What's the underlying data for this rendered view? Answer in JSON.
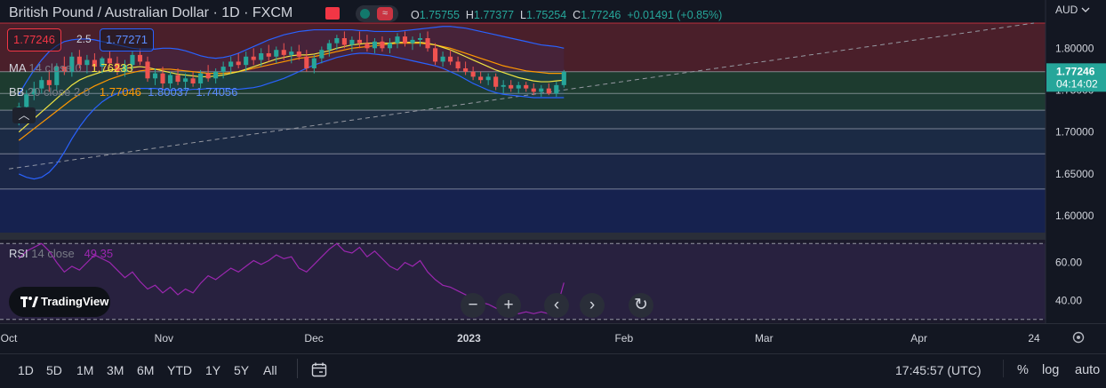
{
  "header": {
    "symbol_title": "British Pound / Australian Dollar · 1D · FXCM",
    "ohlc": {
      "o_label": "O",
      "o_value": "1.75755",
      "h_label": "H",
      "h_value": "1.77377",
      "l_label": "L",
      "l_value": "1.75254",
      "c_label": "C",
      "c_value": "1.77246",
      "change": "+0.01491 (+0.85%)"
    }
  },
  "trade": {
    "sell_price": "1.77246",
    "spread": "2.5",
    "buy_price": "1.77271"
  },
  "indicators": {
    "ma": {
      "name": "MA",
      "params": "14 close 0",
      "value": "1.76233"
    },
    "bb": {
      "name": "BB",
      "params": "20 close 2 0",
      "basis": "1.77046",
      "upper": "1.80037",
      "lower": "1.74056"
    },
    "rsi": {
      "name": "RSI",
      "params": "14 close",
      "value": "49.35"
    }
  },
  "price_axis": {
    "currency": "AUD",
    "labels": [
      "1.80000",
      "1.75000",
      "1.70000",
      "1.65000",
      "1.60000"
    ],
    "current_price": "1.77246",
    "countdown": "04:14:02"
  },
  "rsi_axis": {
    "labels": [
      "60.00",
      "40.00"
    ]
  },
  "time_axis": {
    "labels": [
      "Oct",
      "Nov",
      "Dec",
      "2023",
      "Feb",
      "Mar",
      "Apr",
      "24"
    ]
  },
  "bottom_bar": {
    "ranges": [
      "1D",
      "5D",
      "1M",
      "3M",
      "6M",
      "YTD",
      "1Y",
      "5Y",
      "All"
    ],
    "clock": "17:45:57 (UTC)",
    "percent": "%",
    "log": "log",
    "auto": "auto"
  },
  "branding": {
    "logo_text": "TradingView"
  },
  "colors": {
    "up": "#26a69a",
    "down": "#ef5350",
    "ma": "#f0e442",
    "bb_basis": "#ff9800",
    "bb_band": "#2962ff",
    "rsi": "#9c27b0",
    "background": "#131722"
  },
  "chart_data": {
    "type": "candlestick",
    "timeframe": "1D",
    "x_range": [
      "2022-10-01",
      "2023-04-24"
    ],
    "y_range": [
      1.58,
      1.83
    ],
    "zones": [
      {
        "from": 1.772,
        "to": 1.83,
        "color": "#4a1f2a"
      },
      {
        "from": 1.746,
        "to": 1.772,
        "color": "#1d3b2f"
      },
      {
        "from": 1.726,
        "to": 1.746,
        "color": "#1d3b33"
      },
      {
        "from": 1.704,
        "to": 1.726,
        "color": "#1e2e42"
      },
      {
        "from": 1.674,
        "to": 1.704,
        "color": "#1b2a44"
      },
      {
        "from": 1.632,
        "to": 1.674,
        "color": "#1a2646"
      },
      {
        "from": 1.58,
        "to": 1.632,
        "color": "#16224f"
      }
    ],
    "trend_line": {
      "from": [
        "2022-10-01",
        1.656
      ],
      "to": [
        "2023-04-24",
        1.83
      ]
    },
    "candles": [
      {
        "o": 1.712,
        "h": 1.735,
        "l": 1.708,
        "c": 1.73
      },
      {
        "o": 1.73,
        "h": 1.75,
        "l": 1.722,
        "c": 1.745
      },
      {
        "o": 1.745,
        "h": 1.76,
        "l": 1.738,
        "c": 1.752
      },
      {
        "o": 1.752,
        "h": 1.766,
        "l": 1.746,
        "c": 1.762
      },
      {
        "o": 1.762,
        "h": 1.774,
        "l": 1.748,
        "c": 1.756
      },
      {
        "o": 1.756,
        "h": 1.782,
        "l": 1.75,
        "c": 1.778
      },
      {
        "o": 1.778,
        "h": 1.79,
        "l": 1.768,
        "c": 1.772
      },
      {
        "o": 1.772,
        "h": 1.795,
        "l": 1.766,
        "c": 1.79
      },
      {
        "o": 1.79,
        "h": 1.798,
        "l": 1.776,
        "c": 1.78
      },
      {
        "o": 1.78,
        "h": 1.792,
        "l": 1.77,
        "c": 1.786
      },
      {
        "o": 1.786,
        "h": 1.794,
        "l": 1.774,
        "c": 1.778
      },
      {
        "o": 1.778,
        "h": 1.79,
        "l": 1.77,
        "c": 1.788
      },
      {
        "o": 1.788,
        "h": 1.796,
        "l": 1.778,
        "c": 1.782
      },
      {
        "o": 1.782,
        "h": 1.79,
        "l": 1.768,
        "c": 1.772
      },
      {
        "o": 1.772,
        "h": 1.786,
        "l": 1.766,
        "c": 1.78
      },
      {
        "o": 1.78,
        "h": 1.796,
        "l": 1.774,
        "c": 1.792
      },
      {
        "o": 1.792,
        "h": 1.8,
        "l": 1.78,
        "c": 1.784
      },
      {
        "o": 1.784,
        "h": 1.79,
        "l": 1.76,
        "c": 1.764
      },
      {
        "o": 1.764,
        "h": 1.776,
        "l": 1.756,
        "c": 1.77
      },
      {
        "o": 1.77,
        "h": 1.778,
        "l": 1.752,
        "c": 1.758
      },
      {
        "o": 1.758,
        "h": 1.772,
        "l": 1.752,
        "c": 1.768
      },
      {
        "o": 1.768,
        "h": 1.776,
        "l": 1.756,
        "c": 1.76
      },
      {
        "o": 1.76,
        "h": 1.77,
        "l": 1.75,
        "c": 1.764
      },
      {
        "o": 1.764,
        "h": 1.772,
        "l": 1.754,
        "c": 1.758
      },
      {
        "o": 1.758,
        "h": 1.774,
        "l": 1.752,
        "c": 1.77
      },
      {
        "o": 1.77,
        "h": 1.78,
        "l": 1.76,
        "c": 1.764
      },
      {
        "o": 1.764,
        "h": 1.776,
        "l": 1.758,
        "c": 1.772
      },
      {
        "o": 1.772,
        "h": 1.784,
        "l": 1.764,
        "c": 1.778
      },
      {
        "o": 1.778,
        "h": 1.79,
        "l": 1.77,
        "c": 1.784
      },
      {
        "o": 1.784,
        "h": 1.794,
        "l": 1.776,
        "c": 1.78
      },
      {
        "o": 1.78,
        "h": 1.796,
        "l": 1.772,
        "c": 1.79
      },
      {
        "o": 1.79,
        "h": 1.8,
        "l": 1.78,
        "c": 1.786
      },
      {
        "o": 1.786,
        "h": 1.8,
        "l": 1.778,
        "c": 1.794
      },
      {
        "o": 1.794,
        "h": 1.804,
        "l": 1.784,
        "c": 1.79
      },
      {
        "o": 1.79,
        "h": 1.802,
        "l": 1.782,
        "c": 1.798
      },
      {
        "o": 1.798,
        "h": 1.806,
        "l": 1.786,
        "c": 1.792
      },
      {
        "o": 1.792,
        "h": 1.802,
        "l": 1.782,
        "c": 1.796
      },
      {
        "o": 1.796,
        "h": 1.804,
        "l": 1.786,
        "c": 1.79
      },
      {
        "o": 1.79,
        "h": 1.798,
        "l": 1.772,
        "c": 1.776
      },
      {
        "o": 1.776,
        "h": 1.792,
        "l": 1.77,
        "c": 1.788
      },
      {
        "o": 1.788,
        "h": 1.802,
        "l": 1.782,
        "c": 1.798
      },
      {
        "o": 1.798,
        "h": 1.81,
        "l": 1.79,
        "c": 1.806
      },
      {
        "o": 1.806,
        "h": 1.816,
        "l": 1.798,
        "c": 1.812
      },
      {
        "o": 1.812,
        "h": 1.82,
        "l": 1.8,
        "c": 1.804
      },
      {
        "o": 1.804,
        "h": 1.814,
        "l": 1.796,
        "c": 1.81
      },
      {
        "o": 1.81,
        "h": 1.82,
        "l": 1.8,
        "c": 1.806
      },
      {
        "o": 1.806,
        "h": 1.816,
        "l": 1.796,
        "c": 1.8
      },
      {
        "o": 1.8,
        "h": 1.812,
        "l": 1.794,
        "c": 1.808
      },
      {
        "o": 1.808,
        "h": 1.814,
        "l": 1.796,
        "c": 1.8
      },
      {
        "o": 1.8,
        "h": 1.812,
        "l": 1.794,
        "c": 1.806
      },
      {
        "o": 1.806,
        "h": 1.818,
        "l": 1.8,
        "c": 1.814
      },
      {
        "o": 1.814,
        "h": 1.82,
        "l": 1.802,
        "c": 1.806
      },
      {
        "o": 1.806,
        "h": 1.814,
        "l": 1.798,
        "c": 1.81
      },
      {
        "o": 1.81,
        "h": 1.818,
        "l": 1.802,
        "c": 1.812
      },
      {
        "o": 1.812,
        "h": 1.82,
        "l": 1.796,
        "c": 1.8
      },
      {
        "o": 1.8,
        "h": 1.806,
        "l": 1.78,
        "c": 1.784
      },
      {
        "o": 1.784,
        "h": 1.796,
        "l": 1.778,
        "c": 1.79
      },
      {
        "o": 1.79,
        "h": 1.798,
        "l": 1.78,
        "c": 1.784
      },
      {
        "o": 1.784,
        "h": 1.79,
        "l": 1.772,
        "c": 1.776
      },
      {
        "o": 1.776,
        "h": 1.784,
        "l": 1.768,
        "c": 1.772
      },
      {
        "o": 1.772,
        "h": 1.778,
        "l": 1.762,
        "c": 1.766
      },
      {
        "o": 1.766,
        "h": 1.772,
        "l": 1.758,
        "c": 1.762
      },
      {
        "o": 1.762,
        "h": 1.77,
        "l": 1.756,
        "c": 1.766
      },
      {
        "o": 1.766,
        "h": 1.77,
        "l": 1.75,
        "c": 1.754
      },
      {
        "o": 1.754,
        "h": 1.762,
        "l": 1.746,
        "c": 1.756
      },
      {
        "o": 1.756,
        "h": 1.762,
        "l": 1.748,
        "c": 1.752
      },
      {
        "o": 1.752,
        "h": 1.76,
        "l": 1.746,
        "c": 1.756
      },
      {
        "o": 1.756,
        "h": 1.76,
        "l": 1.748,
        "c": 1.752
      },
      {
        "o": 1.752,
        "h": 1.758,
        "l": 1.744,
        "c": 1.748
      },
      {
        "o": 1.748,
        "h": 1.756,
        "l": 1.742,
        "c": 1.752
      },
      {
        "o": 1.752,
        "h": 1.758,
        "l": 1.744,
        "c": 1.746
      },
      {
        "o": 1.746,
        "h": 1.76,
        "l": 1.742,
        "c": 1.756
      },
      {
        "o": 1.756,
        "h": 1.774,
        "l": 1.753,
        "c": 1.772
      }
    ],
    "ma_14": [
      1.7,
      1.708,
      1.716,
      1.724,
      1.732,
      1.74,
      1.748,
      1.756,
      1.762,
      1.766,
      1.769,
      1.772,
      1.774,
      1.775,
      1.776,
      1.777,
      1.778,
      1.777,
      1.775,
      1.773,
      1.771,
      1.769,
      1.768,
      1.767,
      1.766,
      1.766,
      1.767,
      1.768,
      1.77,
      1.772,
      1.775,
      1.778,
      1.781,
      1.784,
      1.787,
      1.789,
      1.791,
      1.792,
      1.792,
      1.793,
      1.795,
      1.797,
      1.8,
      1.802,
      1.804,
      1.805,
      1.806,
      1.806,
      1.806,
      1.806,
      1.807,
      1.807,
      1.807,
      1.807,
      1.806,
      1.804,
      1.801,
      1.798,
      1.794,
      1.79,
      1.786,
      1.782,
      1.778,
      1.774,
      1.771,
      1.768,
      1.765,
      1.763,
      1.761,
      1.76,
      1.76,
      1.761,
      1.762
    ],
    "bb_basis": [
      1.69,
      1.697,
      1.704,
      1.711,
      1.718,
      1.725,
      1.732,
      1.739,
      1.745,
      1.75,
      1.755,
      1.759,
      1.763,
      1.766,
      1.769,
      1.771,
      1.773,
      1.774,
      1.775,
      1.775,
      1.775,
      1.774,
      1.773,
      1.772,
      1.771,
      1.77,
      1.77,
      1.77,
      1.771,
      1.772,
      1.774,
      1.776,
      1.778,
      1.78,
      1.782,
      1.784,
      1.786,
      1.788,
      1.789,
      1.79,
      1.792,
      1.794,
      1.796,
      1.798,
      1.8,
      1.801,
      1.802,
      1.803,
      1.804,
      1.805,
      1.806,
      1.806,
      1.806,
      1.806,
      1.805,
      1.804,
      1.802,
      1.8,
      1.797,
      1.794,
      1.791,
      1.788,
      1.785,
      1.782,
      1.779,
      1.777,
      1.775,
      1.773,
      1.772,
      1.771,
      1.77,
      1.77,
      1.77
    ],
    "bb_upper": [
      1.745,
      1.76,
      1.774,
      1.786,
      1.796,
      1.803,
      1.808,
      1.81,
      1.811,
      1.811,
      1.81,
      1.808,
      1.806,
      1.804,
      1.802,
      1.8,
      1.799,
      1.799,
      1.799,
      1.8,
      1.8,
      1.799,
      1.797,
      1.794,
      1.791,
      1.789,
      1.788,
      1.789,
      1.791,
      1.794,
      1.798,
      1.802,
      1.806,
      1.81,
      1.813,
      1.816,
      1.818,
      1.82,
      1.821,
      1.822,
      1.822,
      1.822,
      1.822,
      1.822,
      1.822,
      1.821,
      1.821,
      1.82,
      1.82,
      1.82,
      1.82,
      1.821,
      1.822,
      1.823,
      1.824,
      1.825,
      1.826,
      1.826,
      1.825,
      1.824,
      1.822,
      1.82,
      1.818,
      1.816,
      1.814,
      1.812,
      1.81,
      1.808,
      1.806,
      1.804,
      1.803,
      1.802,
      1.8
    ],
    "bb_lower": [
      1.65,
      1.646,
      1.644,
      1.646,
      1.652,
      1.662,
      1.676,
      1.692,
      1.706,
      1.718,
      1.728,
      1.736,
      1.742,
      1.746,
      1.749,
      1.751,
      1.752,
      1.752,
      1.752,
      1.751,
      1.75,
      1.75,
      1.75,
      1.751,
      1.751,
      1.752,
      1.752,
      1.752,
      1.751,
      1.751,
      1.752,
      1.753,
      1.755,
      1.758,
      1.761,
      1.764,
      1.768,
      1.772,
      1.776,
      1.78,
      1.783,
      1.786,
      1.789,
      1.791,
      1.793,
      1.794,
      1.794,
      1.793,
      1.792,
      1.791,
      1.789,
      1.787,
      1.785,
      1.783,
      1.781,
      1.779,
      1.776,
      1.772,
      1.768,
      1.763,
      1.758,
      1.754,
      1.75,
      1.747,
      1.745,
      1.744,
      1.743,
      1.742,
      1.741,
      1.741,
      1.741,
      1.741,
      1.741
    ],
    "rsi": {
      "levels": [
        70,
        30
      ],
      "y_range": [
        28,
        72
      ],
      "values": [
        62,
        66,
        68,
        70,
        66,
        60,
        55,
        58,
        56,
        60,
        64,
        62,
        60,
        56,
        52,
        55,
        50,
        46,
        48,
        44,
        47,
        43,
        46,
        44,
        49,
        53,
        51,
        54,
        57,
        55,
        58,
        61,
        59,
        61,
        64,
        62,
        63,
        57,
        55,
        59,
        63,
        67,
        70,
        66,
        65,
        68,
        63,
        66,
        62,
        58,
        56,
        60,
        58,
        61,
        55,
        51,
        48,
        47,
        45,
        43,
        41,
        39,
        38,
        36,
        34,
        35,
        33,
        34,
        33,
        34,
        33,
        35,
        49.35
      ]
    }
  }
}
